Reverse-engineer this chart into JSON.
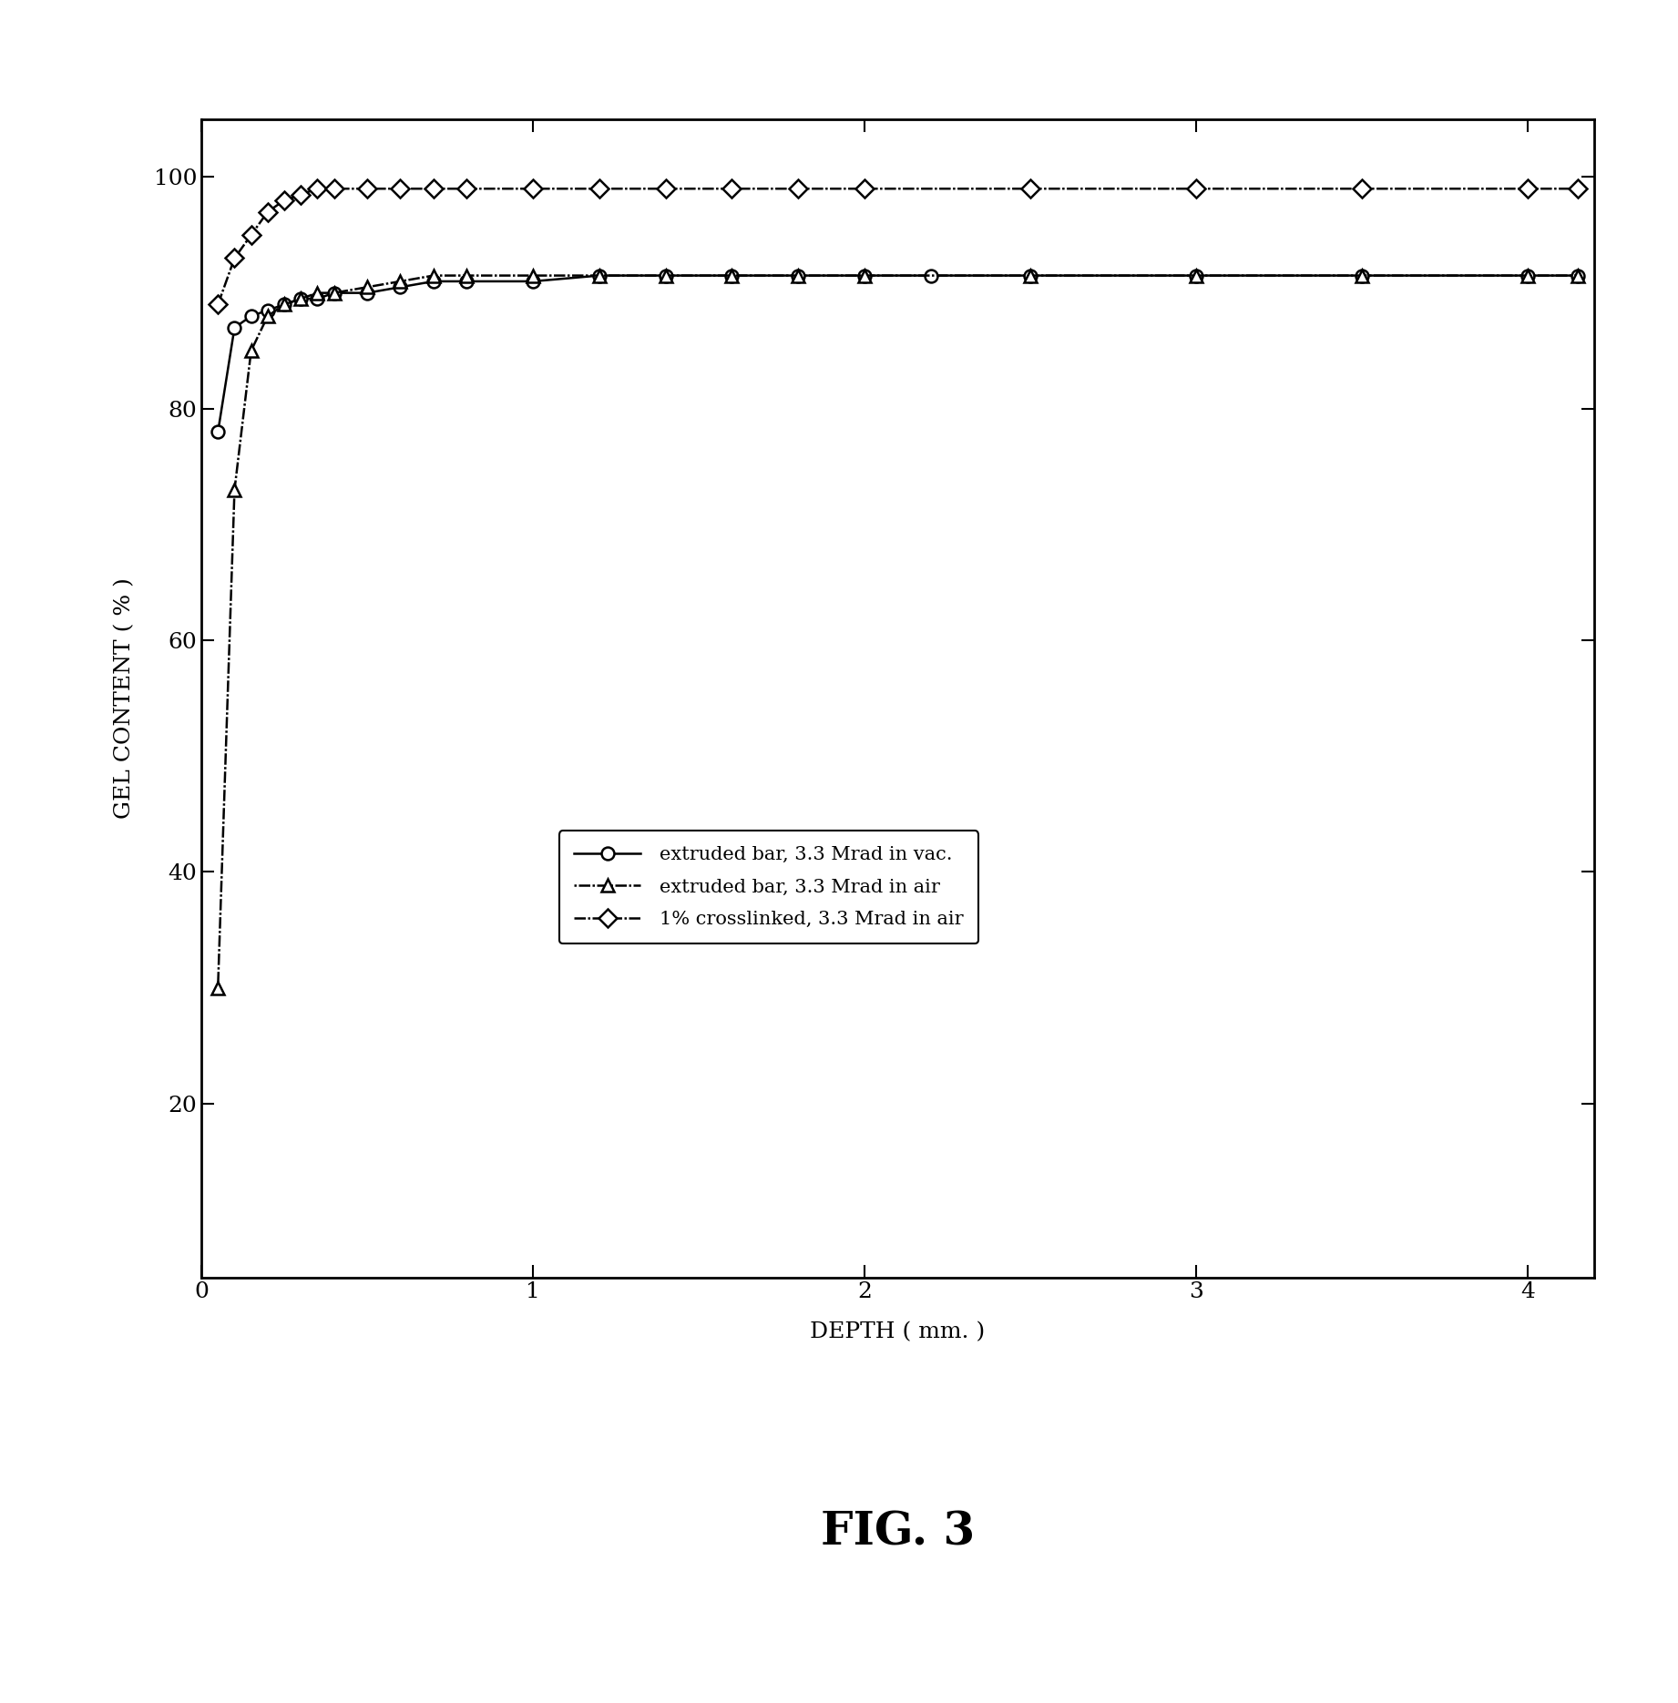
{
  "title": "FIG. 3",
  "xlabel": "DEPTH ( mm. )",
  "ylabel": "GEL CONTENT ( % )",
  "xlim": [
    0,
    4.2
  ],
  "ylim": [
    5,
    105
  ],
  "yticks": [
    20,
    40,
    60,
    80,
    100
  ],
  "xticks": [
    0,
    1,
    2,
    3,
    4
  ],
  "series1_label": "extruded bar, 3.3 Mrad in vac.",
  "series1_x": [
    0.05,
    0.1,
    0.15,
    0.2,
    0.25,
    0.3,
    0.35,
    0.4,
    0.5,
    0.6,
    0.7,
    0.8,
    1.0,
    1.2,
    1.4,
    1.6,
    1.8,
    2.0,
    2.2,
    2.5,
    3.0,
    3.5,
    4.0,
    4.15
  ],
  "series1_y": [
    78,
    87,
    88,
    88.5,
    89,
    89.5,
    89.5,
    90,
    90,
    90.5,
    91,
    91,
    91,
    91.5,
    91.5,
    91.5,
    91.5,
    91.5,
    91.5,
    91.5,
    91.5,
    91.5,
    91.5,
    91.5
  ],
  "series2_label": "extruded bar, 3.3 Mrad in air",
  "series2_x": [
    0.05,
    0.1,
    0.15,
    0.2,
    0.25,
    0.3,
    0.35,
    0.4,
    0.5,
    0.6,
    0.7,
    0.8,
    1.0,
    1.2,
    1.4,
    1.6,
    1.8,
    2.0,
    2.5,
    3.0,
    3.5,
    4.0,
    4.15
  ],
  "series2_y": [
    30,
    73,
    85,
    88,
    89,
    89.5,
    90,
    90,
    90.5,
    91,
    91.5,
    91.5,
    91.5,
    91.5,
    91.5,
    91.5,
    91.5,
    91.5,
    91.5,
    91.5,
    91.5,
    91.5,
    91.5
  ],
  "series3_label": "1% crosslinked, 3.3 Mrad in air",
  "series3_x": [
    0.05,
    0.1,
    0.15,
    0.2,
    0.25,
    0.3,
    0.35,
    0.4,
    0.5,
    0.6,
    0.7,
    0.8,
    1.0,
    1.2,
    1.4,
    1.6,
    1.8,
    2.0,
    2.5,
    3.0,
    3.5,
    4.0,
    4.15
  ],
  "series3_y": [
    89,
    93,
    95,
    97,
    98,
    98.5,
    99,
    99,
    99,
    99,
    99,
    99,
    99,
    99,
    99,
    99,
    99,
    99,
    99,
    99,
    99,
    99,
    99
  ],
  "background_color": "#ffffff",
  "line_color": "#000000",
  "legend_fontsize": 15,
  "axis_label_fontsize": 18,
  "title_fontsize": 36,
  "tick_fontsize": 18
}
